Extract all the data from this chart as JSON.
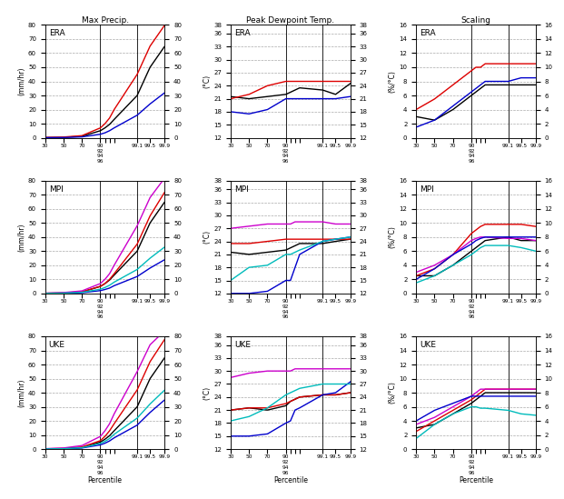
{
  "percentiles": [
    30,
    50,
    70,
    90,
    92,
    94,
    96,
    99.1,
    99.5,
    99.9
  ],
  "vlines": [
    90,
    99.1
  ],
  "col_titles": [
    "Max Precip.",
    "Peak Dewpoint Temp.",
    "Scaling"
  ],
  "row_labels": [
    "ERA",
    "MPI",
    "UKE"
  ],
  "ylim_precip": [
    0,
    80
  ],
  "ylim_dewp": [
    12,
    38
  ],
  "ylim_scaling": [
    0,
    16
  ],
  "yticks_precip": [
    0,
    10,
    20,
    30,
    40,
    50,
    60,
    70,
    80
  ],
  "yticks_dewp": [
    12,
    15,
    18,
    21,
    24,
    27,
    30,
    33,
    36,
    38
  ],
  "yticks_scaling": [
    0,
    2,
    4,
    6,
    8,
    10,
    12,
    14,
    16
  ],
  "ylabel_precip": "(mm/hr)",
  "ylabel_dewp": "(°C)",
  "ylabel_scaling": "(%/°C)",
  "colors_ERA": {
    "OBS": "#000000",
    "CPRCM_ERA": "#dd0000",
    "RCM_ERA": "#0000cc"
  },
  "colors_MPI": {
    "OBS": "#000000",
    "CPRCM_HIS": "#dd0000",
    "CPRCM_FUT": "#cc00cc",
    "RCM_HIS": "#0000cc",
    "RCM_FUT": "#00bbbb"
  },
  "colors_UKE": {
    "OBS": "#000000",
    "CPRCM_HIS": "#dd0000",
    "CPRCM_FUT": "#cc00cc",
    "RCM_HIS": "#0000cc",
    "RCM_FUT": "#00bbbb"
  },
  "ERA_precip": {
    "OBS": [
      0.1,
      0.3,
      1.0,
      5.0,
      7.0,
      9.5,
      13.0,
      30.0,
      50.0,
      65.0
    ],
    "CPRCM_ERA": [
      0.2,
      0.5,
      1.5,
      7.0,
      10.0,
      14.0,
      20.0,
      45.0,
      65.0,
      80.0
    ],
    "RCM_ERA": [
      0.05,
      0.15,
      0.6,
      2.5,
      3.5,
      5.0,
      7.0,
      16.0,
      24.0,
      32.0
    ]
  },
  "ERA_dewp": {
    "OBS": [
      21.5,
      21.0,
      21.5,
      22.0,
      22.5,
      23.0,
      23.5,
      23.0,
      22.0,
      24.5
    ],
    "CPRCM_ERA": [
      21.0,
      22.0,
      24.0,
      25.0,
      25.0,
      25.0,
      25.0,
      25.0,
      25.0,
      25.0
    ],
    "RCM_ERA": [
      18.0,
      17.5,
      18.5,
      21.0,
      21.0,
      21.0,
      21.0,
      21.0,
      21.0,
      21.5
    ]
  },
  "ERA_scaling": {
    "OBS": [
      3.0,
      2.5,
      4.0,
      6.0,
      6.5,
      7.0,
      7.5,
      7.5,
      7.5,
      7.5
    ],
    "CPRCM_ERA": [
      4.0,
      5.5,
      7.5,
      9.5,
      10.0,
      10.0,
      10.5,
      10.5,
      10.5,
      10.5
    ],
    "RCM_ERA": [
      1.5,
      2.5,
      4.5,
      6.5,
      7.0,
      7.5,
      8.0,
      8.0,
      8.5,
      8.5
    ]
  },
  "MPI_precip": {
    "OBS": [
      0.1,
      0.3,
      1.0,
      5.0,
      7.0,
      9.5,
      13.0,
      30.0,
      50.0,
      65.0
    ],
    "CPRCM_HIS": [
      0.15,
      0.4,
      1.2,
      5.0,
      7.0,
      10.0,
      14.0,
      35.0,
      55.0,
      72.0
    ],
    "CPRCM_FUT": [
      0.2,
      0.6,
      1.8,
      7.0,
      10.0,
      14.0,
      20.0,
      48.0,
      68.0,
      82.0
    ],
    "RCM_HIS": [
      0.05,
      0.15,
      0.5,
      2.0,
      2.8,
      3.8,
      5.5,
      12.0,
      18.0,
      24.0
    ],
    "RCM_FUT": [
      0.08,
      0.2,
      0.8,
      3.0,
      4.2,
      5.8,
      8.0,
      17.0,
      25.0,
      33.0
    ]
  },
  "MPI_dewp": {
    "OBS": [
      21.5,
      21.0,
      21.5,
      22.0,
      22.5,
      23.0,
      23.5,
      23.5,
      24.0,
      24.5
    ],
    "CPRCM_HIS": [
      23.5,
      23.5,
      24.0,
      24.5,
      24.5,
      24.5,
      24.5,
      24.5,
      24.5,
      24.5
    ],
    "CPRCM_FUT": [
      27.0,
      27.5,
      28.0,
      28.0,
      28.0,
      28.5,
      28.5,
      28.5,
      28.0,
      28.0
    ],
    "RCM_HIS": [
      12.0,
      12.0,
      12.5,
      15.0,
      15.0,
      18.0,
      21.0,
      24.0,
      24.5,
      25.0
    ],
    "RCM_FUT": [
      15.0,
      18.0,
      18.5,
      21.0,
      21.0,
      21.5,
      22.0,
      24.0,
      24.5,
      25.0
    ]
  },
  "MPI_scaling": {
    "OBS": [
      2.5,
      2.5,
      4.0,
      6.0,
      6.5,
      7.0,
      7.5,
      8.0,
      7.5,
      7.5
    ],
    "CPRCM_HIS": [
      2.5,
      3.5,
      5.5,
      8.5,
      9.0,
      9.5,
      9.8,
      9.8,
      9.8,
      9.5
    ],
    "CPRCM_FUT": [
      3.0,
      4.0,
      5.5,
      7.5,
      7.8,
      8.0,
      8.0,
      7.8,
      7.8,
      7.5
    ],
    "RCM_HIS": [
      2.0,
      3.5,
      5.5,
      7.0,
      7.5,
      7.8,
      8.0,
      8.0,
      8.0,
      8.0
    ],
    "RCM_FUT": [
      1.5,
      2.5,
      4.0,
      5.5,
      6.0,
      6.5,
      6.8,
      6.8,
      6.5,
      6.0
    ]
  },
  "UKE_precip": {
    "OBS": [
      0.1,
      0.3,
      1.0,
      5.0,
      7.0,
      9.5,
      13.0,
      30.0,
      50.0,
      65.0
    ],
    "CPRCM_HIS": [
      0.2,
      0.5,
      1.5,
      6.0,
      9.0,
      13.0,
      18.0,
      42.0,
      62.0,
      78.0
    ],
    "CPRCM_FUT": [
      0.3,
      0.8,
      2.5,
      9.0,
      13.0,
      18.0,
      25.0,
      55.0,
      74.0,
      84.0
    ],
    "RCM_HIS": [
      0.08,
      0.2,
      0.8,
      3.0,
      4.2,
      5.8,
      8.0,
      17.0,
      26.0,
      35.0
    ],
    "RCM_FUT": [
      0.1,
      0.3,
      1.0,
      4.0,
      5.5,
      7.5,
      10.5,
      22.0,
      32.0,
      42.0
    ]
  },
  "UKE_dewp": {
    "OBS": [
      21.0,
      21.5,
      21.0,
      22.0,
      23.0,
      23.5,
      24.0,
      24.5,
      24.5,
      25.0
    ],
    "CPRCM_HIS": [
      21.0,
      21.5,
      21.5,
      22.5,
      23.0,
      23.5,
      24.0,
      24.5,
      24.5,
      25.0
    ],
    "CPRCM_FUT": [
      28.5,
      29.5,
      30.0,
      30.0,
      30.0,
      30.5,
      30.5,
      30.5,
      30.5,
      30.5
    ],
    "RCM_HIS": [
      15.0,
      15.0,
      15.5,
      18.0,
      18.5,
      21.0,
      21.5,
      24.5,
      25.0,
      27.5
    ],
    "RCM_FUT": [
      18.5,
      19.5,
      21.5,
      24.5,
      25.0,
      25.5,
      26.0,
      27.0,
      27.0,
      27.0
    ]
  },
  "UKE_scaling": {
    "OBS": [
      3.0,
      3.5,
      5.0,
      6.5,
      7.0,
      7.5,
      8.0,
      8.0,
      8.0,
      8.0
    ],
    "CPRCM_HIS": [
      2.5,
      4.0,
      5.5,
      7.0,
      7.5,
      8.0,
      8.5,
      8.5,
      8.5,
      8.5
    ],
    "CPRCM_FUT": [
      3.5,
      4.5,
      6.0,
      7.5,
      8.0,
      8.5,
      8.5,
      8.5,
      8.5,
      8.5
    ],
    "RCM_HIS": [
      4.0,
      5.5,
      6.5,
      7.5,
      7.5,
      7.5,
      7.5,
      7.5,
      7.5,
      7.5
    ],
    "RCM_FUT": [
      1.5,
      3.5,
      5.0,
      6.0,
      6.0,
      5.8,
      5.8,
      5.5,
      5.0,
      4.8
    ]
  },
  "bg_color": "#ffffff",
  "grid_color": "#aaaaaa",
  "lw": 1.0
}
